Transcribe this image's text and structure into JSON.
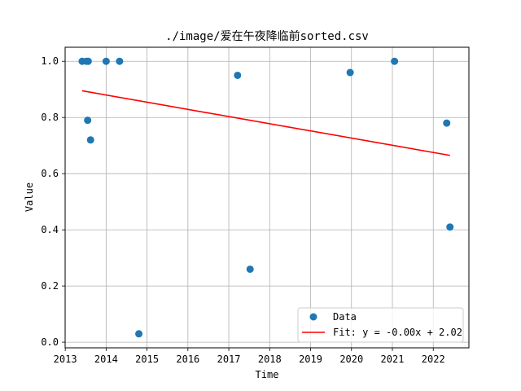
{
  "chart_data": {
    "type": "scatter",
    "title": "./image/爱在午夜降临前sorted.csv",
    "xlabel": "Time",
    "ylabel": "Value",
    "xlim": [
      "2012-12-31",
      "2022-11-15"
    ],
    "ylim": [
      -0.02,
      1.05
    ],
    "x_ticks": [
      "2013",
      "2014",
      "2015",
      "2016",
      "2017",
      "2018",
      "2019",
      "2020",
      "2021",
      "2022"
    ],
    "y_ticks": [
      "0.0",
      "0.2",
      "0.4",
      "0.6",
      "0.8",
      "1.0"
    ],
    "grid": true,
    "legend_position": "lower-right",
    "series": [
      {
        "name": "Data",
        "kind": "scatter",
        "color": "#1f77b4",
        "points": [
          {
            "x": "2013-06-01",
            "y": 1.0
          },
          {
            "x": "2013-07-10",
            "y": 1.0
          },
          {
            "x": "2013-07-25",
            "y": 1.0
          },
          {
            "x": "2013-07-20",
            "y": 0.79
          },
          {
            "x": "2013-08-15",
            "y": 0.72
          },
          {
            "x": "2014-01-01",
            "y": 1.0
          },
          {
            "x": "2014-05-01",
            "y": 1.0
          },
          {
            "x": "2014-10-20",
            "y": 0.03
          },
          {
            "x": "2017-03-20",
            "y": 0.95
          },
          {
            "x": "2017-07-10",
            "y": 0.26
          },
          {
            "x": "2019-12-20",
            "y": 0.96
          },
          {
            "x": "2021-01-20",
            "y": 1.0
          },
          {
            "x": "2022-05-01",
            "y": 0.78
          },
          {
            "x": "2022-05-30",
            "y": 0.41
          }
        ]
      },
      {
        "name": "Fit: y = -0.00x + 2.02",
        "kind": "line",
        "color": "#ff0000",
        "points": [
          {
            "x": "2013-06-01",
            "y": 0.895
          },
          {
            "x": "2022-05-30",
            "y": 0.665
          }
        ]
      }
    ]
  }
}
